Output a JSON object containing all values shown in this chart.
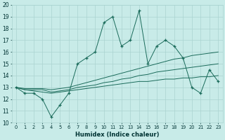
{
  "xlabel": "Humidex (Indice chaleur)",
  "x": [
    0,
    1,
    2,
    3,
    4,
    5,
    6,
    7,
    8,
    9,
    10,
    11,
    12,
    13,
    14,
    15,
    16,
    17,
    18,
    19,
    20,
    21,
    22,
    23
  ],
  "y_main": [
    13,
    12.5,
    12.5,
    12,
    10.5,
    11.5,
    12.5,
    15,
    15.5,
    16,
    18.5,
    19,
    16.5,
    17,
    19.5,
    15,
    16.5,
    17,
    16.5,
    15.5,
    13,
    12.5,
    14.5,
    13.5
  ],
  "y_line1": [
    13,
    12.8,
    12.7,
    12.6,
    12.5,
    12.6,
    12.7,
    12.8,
    12.9,
    13.0,
    13.1,
    13.2,
    13.3,
    13.4,
    13.5,
    13.5,
    13.6,
    13.7,
    13.7,
    13.8,
    13.8,
    13.9,
    13.9,
    14.0
  ],
  "y_line2": [
    13,
    12.8,
    12.8,
    12.8,
    12.6,
    12.7,
    12.8,
    13.0,
    13.1,
    13.2,
    13.4,
    13.5,
    13.7,
    13.8,
    14.0,
    14.1,
    14.3,
    14.4,
    14.5,
    14.6,
    14.7,
    14.8,
    14.9,
    15.0
  ],
  "y_line3": [
    13,
    12.9,
    12.9,
    12.9,
    12.8,
    12.9,
    13.0,
    13.2,
    13.4,
    13.6,
    13.8,
    14.0,
    14.2,
    14.4,
    14.6,
    14.8,
    15.0,
    15.2,
    15.4,
    15.5,
    15.7,
    15.8,
    15.9,
    16.0
  ],
  "ylim": [
    10,
    20
  ],
  "xlim": [
    -0.5,
    23.5
  ],
  "yticks": [
    10,
    11,
    12,
    13,
    14,
    15,
    16,
    17,
    18,
    19,
    20
  ],
  "xticks": [
    0,
    1,
    2,
    3,
    4,
    5,
    6,
    7,
    8,
    9,
    10,
    11,
    12,
    13,
    14,
    15,
    16,
    17,
    18,
    19,
    20,
    21,
    22,
    23
  ],
  "line_color": "#1a6b5a",
  "bg_color": "#c8ebe8",
  "grid_color": "#aad4d0"
}
